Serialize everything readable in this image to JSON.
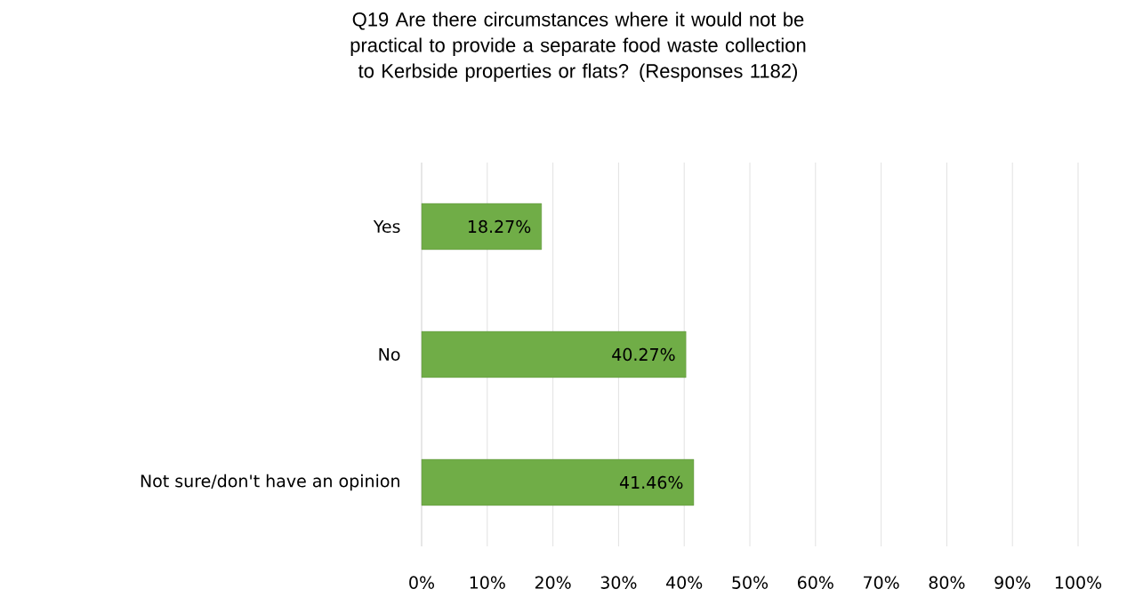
{
  "chart_data": {
    "type": "bar",
    "orientation": "horizontal",
    "title": "Q19 Are there circumstances where it would not be practical to provide a separate food waste collection to Kerbside properties or flats? (Responses 1182)",
    "categories": [
      "Yes",
      "No",
      "Not sure/don't have an opinion"
    ],
    "values": [
      18.27,
      40.27,
      41.46
    ],
    "value_labels": [
      "18.27%",
      "40.27%",
      "41.46%"
    ],
    "color": "#70ad47",
    "xlim": [
      0,
      100
    ],
    "xticks": [
      {
        "value": 0,
        "label": "0%"
      },
      {
        "value": 10,
        "label": "10%"
      },
      {
        "value": 20,
        "label": "20%"
      },
      {
        "value": 30,
        "label": "30%"
      },
      {
        "value": 40,
        "label": "40%"
      },
      {
        "value": 50,
        "label": "50%"
      },
      {
        "value": 60,
        "label": "60%"
      },
      {
        "value": 70,
        "label": "70%"
      },
      {
        "value": 80,
        "label": "80%"
      },
      {
        "value": 90,
        "label": "90%"
      },
      {
        "value": 100,
        "label": "100%"
      }
    ],
    "grid": "x"
  }
}
